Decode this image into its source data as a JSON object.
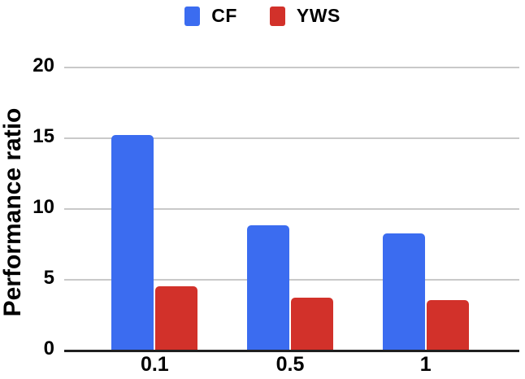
{
  "chart_data": {
    "type": "bar",
    "title": "",
    "xlabel": "",
    "ylabel": "Performance ratio",
    "categories": [
      "0.1",
      "0.5",
      "1"
    ],
    "series": [
      {
        "name": "CF",
        "color": "#3b6cf0",
        "values": [
          15.2,
          8.8,
          8.2
        ]
      },
      {
        "name": "YWS",
        "color": "#d2312a",
        "values": [
          4.5,
          3.7,
          3.5
        ]
      }
    ],
    "ylim": [
      0,
      20
    ],
    "yticks": [
      0,
      5,
      10,
      15,
      20
    ],
    "grid": true,
    "legend_position": "top",
    "colors": {
      "gridline": "#c9c9c9",
      "axis_line": "#1f1f1f",
      "text": "#000000"
    }
  }
}
